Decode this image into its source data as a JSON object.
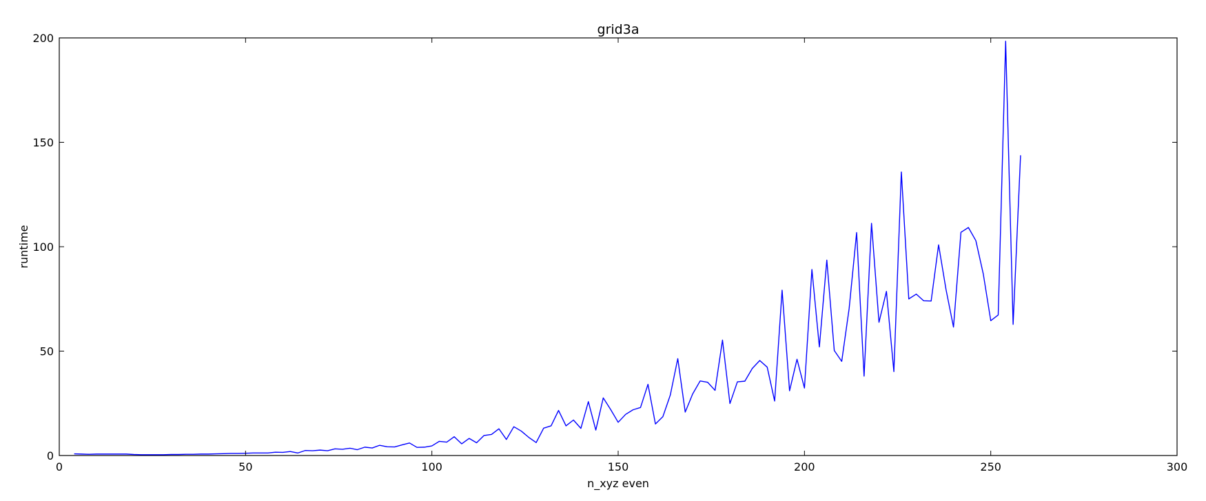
{
  "chart_data": {
    "type": "line",
    "title": "grid3a",
    "xlabel": "n_xyz even",
    "ylabel": "runtime",
    "xlim": [
      0,
      300
    ],
    "ylim": [
      0,
      200
    ],
    "xticks": [
      0,
      50,
      100,
      150,
      200,
      250,
      300
    ],
    "yticks": [
      0,
      50,
      100,
      150,
      200
    ],
    "grid": false,
    "legend": "none",
    "line_color": "#0000ff",
    "series": [
      {
        "x": [
          4,
          6,
          8,
          10,
          12,
          14,
          16,
          18,
          20,
          22,
          24,
          26,
          28,
          30,
          32,
          34,
          36,
          38,
          40,
          42,
          44,
          46,
          48,
          50,
          52,
          54,
          56,
          58,
          60,
          62,
          64,
          66,
          68,
          70,
          72,
          74,
          76,
          78,
          80,
          82,
          84,
          86,
          88,
          90,
          92,
          94,
          96,
          98,
          100,
          102,
          104,
          106,
          108,
          110,
          112,
          114,
          116,
          118,
          120,
          122,
          124,
          126,
          128,
          130,
          132,
          134,
          136,
          138,
          140,
          142,
          144,
          146,
          148,
          150,
          152,
          154,
          156,
          158,
          160,
          162,
          164,
          166,
          168,
          170,
          172,
          174,
          176,
          178,
          180,
          182,
          184,
          186,
          188,
          190,
          192,
          194,
          196,
          198,
          200,
          202,
          204,
          206,
          208,
          210,
          212,
          214,
          216,
          218,
          220,
          222,
          224,
          226,
          228,
          230,
          232,
          234,
          236,
          238,
          240,
          242,
          244,
          246,
          248,
          250,
          252,
          254,
          256,
          258
        ],
        "y": [
          0.8,
          0.7,
          0.6,
          0.7,
          0.7,
          0.7,
          0.7,
          0.7,
          0.5,
          0.4,
          0.4,
          0.4,
          0.4,
          0.5,
          0.5,
          0.6,
          0.6,
          0.7,
          0.7,
          0.8,
          0.9,
          1.0,
          1.0,
          1.1,
          1.2,
          1.2,
          1.2,
          1.6,
          1.5,
          1.9,
          1.2,
          2.4,
          2.3,
          2.6,
          2.3,
          3.2,
          3.0,
          3.5,
          2.8,
          4.0,
          3.6,
          4.9,
          4.2,
          4.1,
          5.1,
          6.0,
          3.9,
          4.0,
          4.6,
          6.8,
          6.4,
          9.0,
          5.6,
          8.2,
          6.1,
          9.6,
          10.1,
          12.8,
          7.7,
          13.8,
          11.7,
          8.7,
          6.2,
          13.1,
          14.2,
          21.6,
          14.2,
          17.0,
          13.0,
          25.8,
          12.2,
          27.6,
          22.0,
          15.9,
          19.7,
          21.9,
          23.0,
          34.1,
          15.1,
          18.6,
          29.0,
          46.4,
          20.8,
          29.5,
          35.7,
          35.1,
          31.2,
          55.3,
          24.9,
          35.3,
          35.6,
          41.7,
          45.5,
          42.3,
          26.1,
          79.2,
          31.0,
          46.1,
          32.3,
          89.1,
          52.0,
          93.6,
          50.3,
          45.1,
          70.5,
          106.8,
          38.0,
          111.2,
          63.8,
          78.6,
          40.2,
          135.8,
          75.0,
          77.3,
          74.1,
          74.0,
          100.9,
          79.4,
          61.5,
          106.9,
          109.2,
          102.9,
          86.9,
          64.6,
          67.3,
          198.4,
          62.8,
          143.8
        ]
      }
    ]
  }
}
